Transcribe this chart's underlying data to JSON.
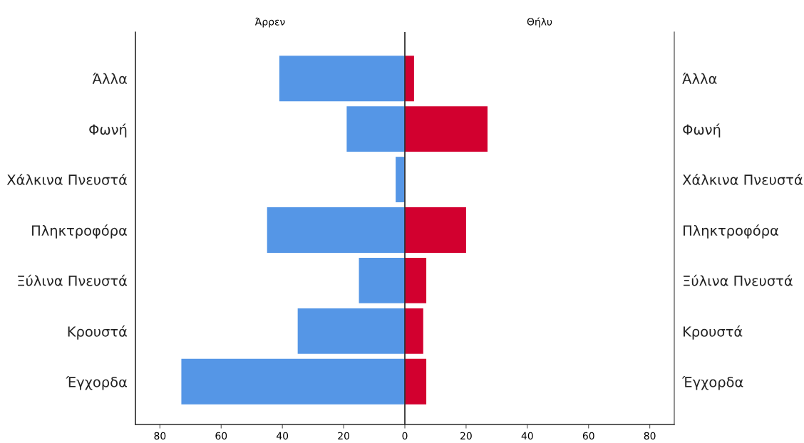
{
  "chart_data": {
    "type": "bar",
    "orientation": "horizontal",
    "categories": [
      "Άλλα",
      "Φωνή",
      "Χάλκινα Πνευστά",
      "Πληκτροφόρα",
      "Ξύλινα Πνευστά",
      "Κρουστά",
      "Έγχορδα"
    ],
    "y2_categories": [
      "Άλλα",
      "Φωνή",
      "Χάλκινα Πνευστά",
      "Πληκτροφόρα",
      "Ξύλινα Πνευστά",
      "Κρουστά",
      "Έγχορδα"
    ],
    "series": [
      {
        "name": "Άρρεν",
        "color": "#5596e6",
        "values": [
          -41,
          -19,
          -3,
          -45,
          -15,
          -35,
          -73
        ]
      },
      {
        "name": "Θήλυ",
        "color": "#d2002f",
        "values": [
          3,
          27,
          0,
          20,
          7,
          6,
          7
        ]
      }
    ],
    "xlim": [
      -88,
      88
    ],
    "xticks": [
      {
        "value": -80,
        "label": "80"
      },
      {
        "value": -60,
        "label": "60"
      },
      {
        "value": -40,
        "label": "40"
      },
      {
        "value": -20,
        "label": "20"
      },
      0,
      20,
      40,
      60,
      80
    ],
    "ref_lines": [
      {
        "axis": "x",
        "value": 0,
        "color": "#333333"
      }
    ],
    "stacked": true,
    "grid": false
  }
}
